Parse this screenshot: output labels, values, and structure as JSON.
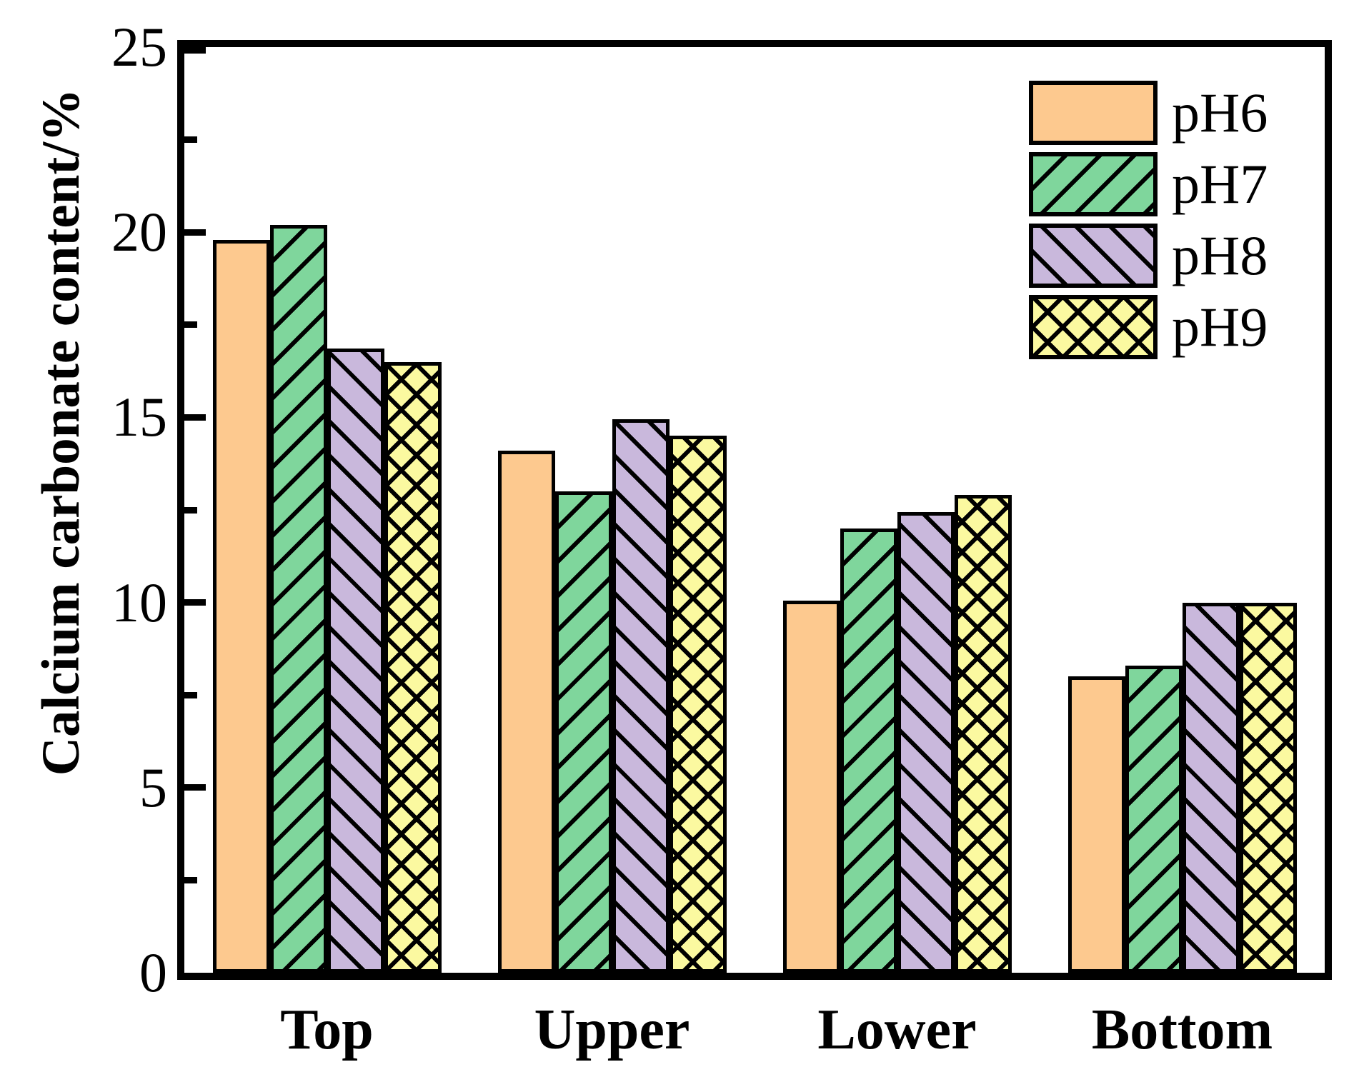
{
  "figure": {
    "background": "#ffffff"
  },
  "chart_data": {
    "type": "bar",
    "title": "",
    "xlabel": "",
    "ylabel": "Calcium carbonate content/%",
    "categories": [
      "Top",
      "Upper",
      "Lower",
      "Bottom"
    ],
    "series": [
      {
        "name": "pH6",
        "fill": "#FDC98F",
        "hatch": "none",
        "values": [
          19.8,
          14.1,
          10.05,
          8.0
        ]
      },
      {
        "name": "pH7",
        "fill": "#7FD69C",
        "hatch": "forward-diagonal",
        "values": [
          20.2,
          13.0,
          12.0,
          8.3
        ]
      },
      {
        "name": "pH8",
        "fill": "#C9B8DC",
        "hatch": "backward-diagonal",
        "values": [
          16.85,
          14.95,
          12.45,
          10.0
        ]
      },
      {
        "name": "pH9",
        "fill": "#FBF9A0",
        "hatch": "cross-diagonal",
        "values": [
          16.5,
          14.5,
          12.9,
          10.0
        ]
      }
    ],
    "ylim": [
      0,
      25
    ],
    "yticks": [
      0,
      5,
      10,
      15,
      20,
      25
    ],
    "ytick_labels": [
      "0",
      "5",
      "10",
      "15",
      "20",
      "25"
    ],
    "minor_tick_interval": 2.5,
    "bar_outline_color": "#000000",
    "legend": {
      "position": "top-right",
      "entries": [
        "pH6",
        "pH7",
        "pH8",
        "pH9"
      ]
    },
    "grid": false
  }
}
